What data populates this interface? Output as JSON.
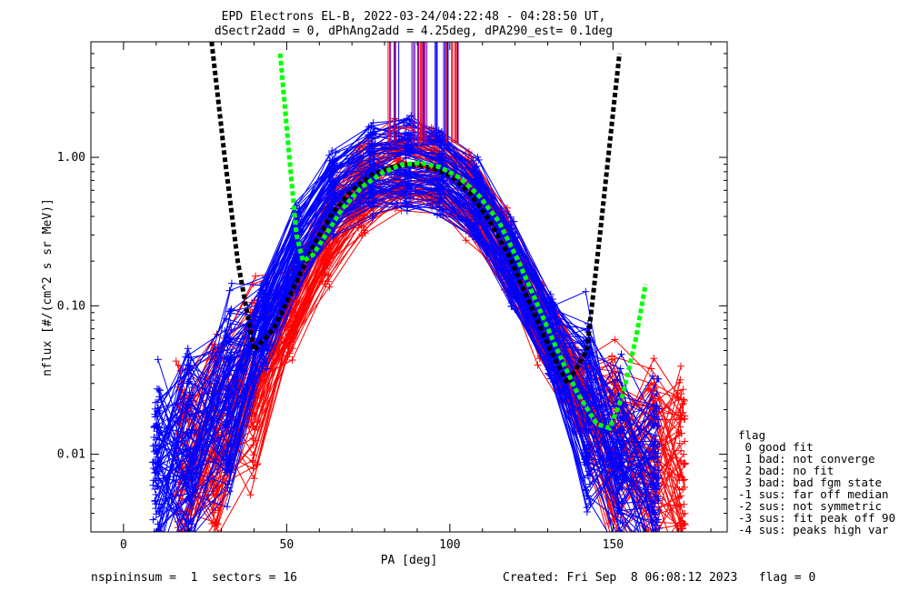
{
  "chart_data": {
    "type": "line",
    "title": "EPD Electrons EL-B, 2022-03-24/04:22:48 - 04:28:50 UT,",
    "subtitle": "dSectr2add = 0, dPhAng2add = 4.25deg, dPA290_est=   0.1deg",
    "xlabel": "PA [deg]",
    "ylabel": "nflux [#/(cm^2 s sr MeV)]",
    "xlim": [
      -10,
      185
    ],
    "ylim": [
      0.003,
      6.0
    ],
    "yscale": "log",
    "x_ticks": [
      0,
      50,
      100,
      150
    ],
    "y_ticks": [
      0.01,
      0.1,
      1.0
    ],
    "y_tick_labels": [
      "0.01",
      "0.10",
      "1.00"
    ],
    "grid": false,
    "series": [
      {
        "color": "#ff0000",
        "style": "many sweeps with + markers",
        "x": [
          17,
          28,
          40,
          51,
          62,
          73,
          84,
          95,
          106,
          117,
          128,
          140,
          150,
          162,
          171
        ],
        "y": [
          0.008,
          0.012,
          0.03,
          0.09,
          0.28,
          0.62,
          0.9,
          0.85,
          0.6,
          0.25,
          0.08,
          0.025,
          0.012,
          0.01,
          0.009
        ]
      },
      {
        "color": "#0000ff",
        "style": "many sweeps with + markers",
        "x": [
          10,
          20,
          32,
          43,
          53,
          64,
          76,
          87,
          97,
          108,
          119,
          131,
          142,
          152,
          163
        ],
        "y": [
          0.007,
          0.011,
          0.025,
          0.08,
          0.25,
          0.58,
          0.85,
          0.9,
          0.82,
          0.5,
          0.2,
          0.06,
          0.02,
          0.009,
          0.007
        ]
      },
      {
        "color": "#000000",
        "style": "thick dotted fit",
        "x": [
          27,
          31,
          35,
          40,
          46,
          52,
          58,
          64,
          70,
          76,
          82,
          88,
          94,
          100,
          106,
          112,
          118,
          124,
          130,
          136,
          142,
          146,
          150,
          152
        ],
        "y": [
          6.0,
          1.0,
          0.2,
          0.05,
          0.07,
          0.13,
          0.25,
          0.42,
          0.6,
          0.76,
          0.86,
          0.9,
          0.86,
          0.76,
          0.58,
          0.38,
          0.22,
          0.11,
          0.055,
          0.03,
          0.05,
          0.3,
          2.0,
          5.0
        ]
      },
      {
        "color": "#00ff00",
        "style": "thick dotted fit",
        "x": [
          48,
          51,
          53,
          55,
          58,
          62,
          67,
          73,
          79,
          85,
          91,
          97,
          103,
          109,
          115,
          121,
          127,
          133,
          139,
          145,
          149,
          153,
          157,
          160
        ],
        "y": [
          5.0,
          0.9,
          0.3,
          0.2,
          0.22,
          0.3,
          0.45,
          0.63,
          0.78,
          0.89,
          0.92,
          0.86,
          0.73,
          0.55,
          0.37,
          0.2,
          0.1,
          0.05,
          0.026,
          0.016,
          0.015,
          0.025,
          0.06,
          0.14
        ]
      }
    ]
  },
  "legend": {
    "title": "flag",
    "entries": [
      " 0 good fit",
      " 1 bad: not converge",
      " 2 bad: no fit",
      " 3 bad: bad fgm state",
      "-1 sus: far off median",
      "-2 sus: not symmetric",
      "-3 sus: fit peak off 90",
      "-4 sus: peaks high var"
    ]
  },
  "footer": {
    "left": "nspininsum =  1  sectors = 16",
    "right": "Created: Fri Sep  8 06:08:12 2023   flag = 0"
  }
}
